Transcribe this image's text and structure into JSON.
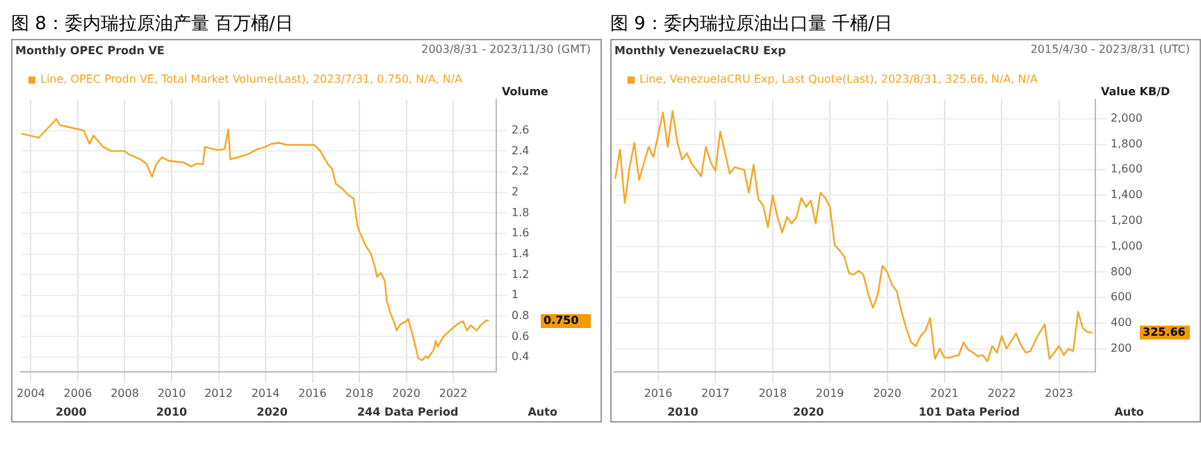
{
  "chart_data": [
    {
      "type": "line",
      "title": "图 8：委内瑞拉原油产量 百万桶/日",
      "subtitle": "Monthly OPEC Prodn VE",
      "ylabel": "Volume",
      "annotations": [
        "2003/8/31 - 2023/11/30 (GMT)",
        "0.750",
        "2000",
        "2010",
        "2020",
        "244 Data Period",
        "Auto"
      ],
      "series": [
        {
          "name": "Line, OPEC Prodn VE, Total Market Volume(Last), 2023/7/31, 0.750, N/A, N/A",
          "color": "#f5a623",
          "x": [
            "2003-08",
            "2004-05",
            "2004-09",
            "2005-02",
            "2005-04",
            "2005-09",
            "2006-04",
            "2006-07",
            "2006-09",
            "2007-02",
            "2007-06",
            "2008-01",
            "2008-03",
            "2008-09",
            "2008-12",
            "2009-03",
            "2009-05",
            "2009-08",
            "2009-11",
            "2010-02",
            "2010-07",
            "2010-11",
            "2011-02",
            "2011-05",
            "2011-06",
            "2011-10",
            "2012-01",
            "2012-04",
            "2012-06",
            "2012-07",
            "2012-11",
            "2013-04",
            "2013-09",
            "2014-01",
            "2014-04",
            "2014-08",
            "2014-12",
            "2015-07",
            "2015-11",
            "2016-02",
            "2016-05",
            "2016-09",
            "2016-11",
            "2017-01",
            "2017-04",
            "2017-07",
            "2017-10",
            "2017-12",
            "2018-01",
            "2018-04",
            "2018-07",
            "2018-09",
            "2018-10",
            "2018-12",
            "2019-02",
            "2019-03",
            "2019-05",
            "2019-07",
            "2019-08",
            "2019-10",
            "2020-01",
            "2020-02",
            "2020-04",
            "2020-06",
            "2020-07",
            "2020-09",
            "2020-11",
            "2020-12",
            "2021-03",
            "2021-04",
            "2021-05",
            "2021-08",
            "2021-12",
            "2022-03",
            "2022-06",
            "2022-08",
            "2022-10",
            "2023-01",
            "2023-03",
            "2023-06",
            "2023-07"
          ],
          "values": [
            2.57,
            2.53,
            2.61,
            2.71,
            2.65,
            2.63,
            2.6,
            2.47,
            2.55,
            2.44,
            2.4,
            2.4,
            2.37,
            2.32,
            2.28,
            2.15,
            2.27,
            2.34,
            2.31,
            2.3,
            2.29,
            2.25,
            2.28,
            2.27,
            2.44,
            2.42,
            2.41,
            2.42,
            2.61,
            2.32,
            2.34,
            2.37,
            2.42,
            2.44,
            2.47,
            2.48,
            2.46,
            2.46,
            2.46,
            2.46,
            2.4,
            2.27,
            2.23,
            2.08,
            2.04,
            1.98,
            1.94,
            1.68,
            1.62,
            1.49,
            1.4,
            1.27,
            1.18,
            1.22,
            1.14,
            0.95,
            0.82,
            0.73,
            0.66,
            0.72,
            0.75,
            0.77,
            0.63,
            0.48,
            0.39,
            0.37,
            0.41,
            0.39,
            0.47,
            0.56,
            0.5,
            0.6,
            0.67,
            0.72,
            0.75,
            0.66,
            0.71,
            0.66,
            0.71,
            0.76,
            0.75
          ]
        }
      ],
      "xlim": [
        "2003-08-01",
        "2023-11-01"
      ],
      "xticks": [
        "2004",
        "2006",
        "2008",
        "2010",
        "2012",
        "2014",
        "2016",
        "2018",
        "2020",
        "2022"
      ],
      "ylim": [
        0.26,
        2.9
      ],
      "yticks": [
        0.4,
        0.6,
        0.8,
        {
          "value": 1,
          "label": "1"
        },
        1.2,
        1.4,
        1.6,
        1.8,
        {
          "value": 2,
          "label": "2"
        },
        2.2,
        2.4,
        2.6
      ],
      "grid": true,
      "legend": "top left",
      "marker": "none",
      "line_style": "solid"
    },
    {
      "type": "line",
      "title": "图 9：委内瑞拉原油出口量 千桶/日",
      "subtitle": "Monthly VenezuelaCRU Exp",
      "ylabel": "Value KB/D",
      "annotations": [
        "2015/4/30 - 2023/8/31 (UTC)",
        "325.66",
        "2010",
        "2020",
        "101 Data Period",
        "Auto"
      ],
      "series": [
        {
          "name": "Line, VenezuelaCRU Exp, Last Quote(Last), 2023/8/31, 325.66, N/A, N/A",
          "color": "#f5a623",
          "x": [
            "2015-04",
            "2015-05",
            "2015-06",
            "2015-07",
            "2015-08",
            "2015-09",
            "2015-10",
            "2015-11",
            "2015-12",
            "2016-02",
            "2016-03",
            "2016-04",
            "2016-05",
            "2016-06",
            "2016-07",
            "2016-08",
            "2016-10",
            "2016-11",
            "2016-12",
            "2017-01",
            "2017-02",
            "2017-04",
            "2017-05",
            "2017-07",
            "2017-08",
            "2017-09",
            "2017-10",
            "2017-11",
            "2017-12",
            "2018-01",
            "2018-02",
            "2018-03",
            "2018-04",
            "2018-05",
            "2018-06",
            "2018-07",
            "2018-08",
            "2018-09",
            "2018-10",
            "2018-11",
            "2018-12",
            "2019-01",
            "2019-02",
            "2019-03",
            "2019-04",
            "2019-05",
            "2019-06",
            "2019-07",
            "2019-08",
            "2019-09",
            "2019-10",
            "2019-11",
            "2019-12",
            "2020-01",
            "2020-02",
            "2020-03",
            "2020-04",
            "2020-05",
            "2020-06",
            "2020-07",
            "2020-08",
            "2020-09",
            "2020-10",
            "2020-11",
            "2020-12",
            "2021-01",
            "2021-02",
            "2021-03",
            "2021-04",
            "2021-05",
            "2021-06",
            "2021-07",
            "2021-08",
            "2021-09",
            "2021-10",
            "2021-11",
            "2021-12",
            "2022-01",
            "2022-02",
            "2022-03",
            "2022-04",
            "2022-05",
            "2022-06",
            "2022-07",
            "2022-08",
            "2022-09",
            "2022-10",
            "2022-11",
            "2022-12",
            "2023-01",
            "2023-02",
            "2023-03",
            "2023-04",
            "2023-05",
            "2023-06",
            "2023-07",
            "2023-08"
          ],
          "values": [
            1530,
            1760,
            1340,
            1620,
            1810,
            1520,
            1650,
            1780,
            1700,
            2050,
            1780,
            2060,
            1820,
            1680,
            1730,
            1650,
            1550,
            1780,
            1660,
            1590,
            1900,
            1570,
            1620,
            1600,
            1420,
            1640,
            1370,
            1320,
            1150,
            1400,
            1230,
            1110,
            1230,
            1180,
            1230,
            1380,
            1310,
            1360,
            1180,
            1420,
            1380,
            1310,
            1010,
            970,
            920,
            790,
            780,
            810,
            780,
            630,
            520,
            620,
            850,
            800,
            700,
            650,
            490,
            360,
            250,
            220,
            300,
            340,
            440,
            120,
            200,
            130,
            130,
            140,
            150,
            250,
            190,
            170,
            140,
            150,
            100,
            220,
            170,
            300,
            200,
            260,
            320,
            230,
            170,
            180,
            260,
            330,
            390,
            120,
            170,
            220,
            150,
            200,
            180,
            490,
            360,
            330,
            325.66
          ]
        }
      ],
      "xlim": [
        "2015-03-26",
        "2023-08-20"
      ],
      "xticks": [
        "2016",
        "2017",
        "2018",
        "2019",
        "2020",
        "2021",
        "2022",
        "2023"
      ],
      "ylim": [
        20,
        2150
      ],
      "yticks": [
        200,
        400,
        600,
        800,
        {
          "value": 1000,
          "label": "1,000"
        },
        {
          "value": 1200,
          "label": "1,200"
        },
        {
          "value": 1400,
          "label": "1,400"
        },
        {
          "value": 1600,
          "label": "1,600"
        },
        {
          "value": 1800,
          "label": "1,800"
        },
        {
          "value": 2000,
          "label": "2,000"
        }
      ],
      "grid": true,
      "legend": "top left",
      "marker": "none",
      "line_style": "solid"
    }
  ]
}
